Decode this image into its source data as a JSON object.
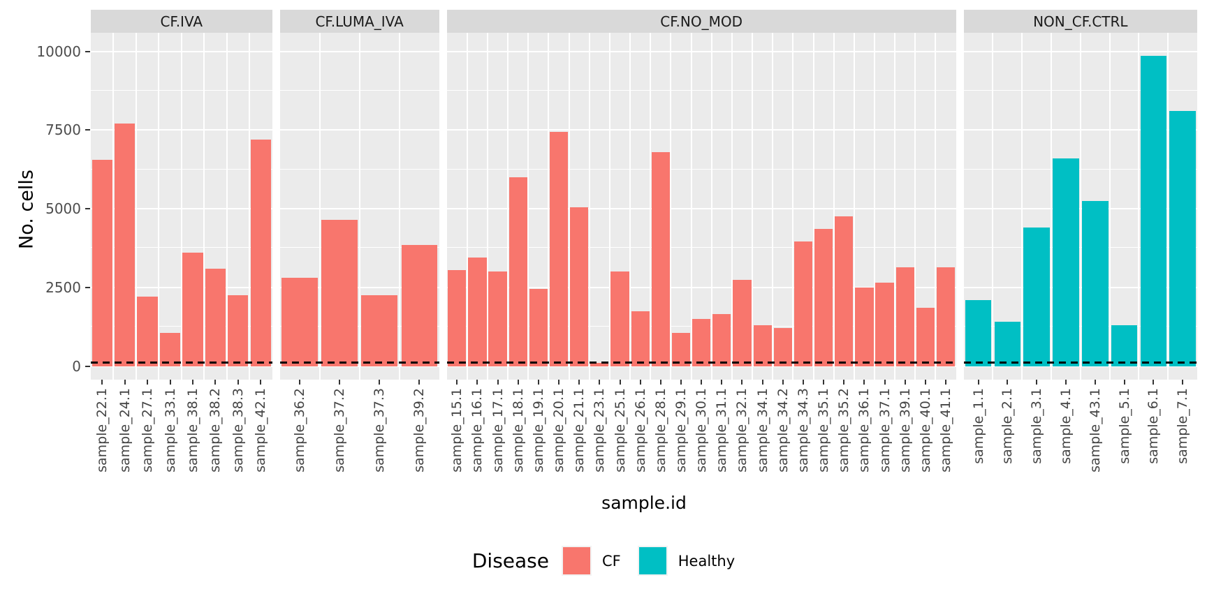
{
  "chart_data": {
    "type": "bar",
    "title": "",
    "xlabel": "sample.id",
    "ylabel": "No. cells",
    "ylim": [
      0,
      10000
    ],
    "yticks": [
      0,
      2500,
      5000,
      7500,
      10000
    ],
    "grid": true,
    "legend_position": "bottom",
    "legend": {
      "title": "Disease",
      "entries": [
        {
          "label": "CF",
          "color": "#F8766D"
        },
        {
          "label": "Healthy",
          "color": "#00BFC4"
        }
      ]
    },
    "threshold_line": {
      "y": 100,
      "style": "dashed",
      "color": "#000000"
    },
    "facets": [
      {
        "label": "CF.IVA",
        "disease": "CF",
        "categories": [
          "sample_22.1",
          "sample_24.1",
          "sample_27.1",
          "sample_33.1",
          "sample_38.1",
          "sample_38.2",
          "sample_38.3",
          "sample_42.1"
        ],
        "values": [
          6550,
          7700,
          2200,
          1050,
          3600,
          3100,
          2250,
          7200
        ]
      },
      {
        "label": "CF.LUMA_IVA",
        "disease": "CF",
        "categories": [
          "sample_36.2",
          "sample_37.2",
          "sample_37.3",
          "sample_39.2"
        ],
        "values": [
          2800,
          4650,
          2250,
          3850
        ]
      },
      {
        "label": "CF.NO_MOD",
        "disease": "CF",
        "categories": [
          "sample_15.1",
          "sample_16.1",
          "sample_17.1",
          "sample_18.1",
          "sample_19.1",
          "sample_20.1",
          "sample_21.1",
          "sample_23.1",
          "sample_25.1",
          "sample_26.1",
          "sample_28.1",
          "sample_29.1",
          "sample_30.1",
          "sample_31.1",
          "sample_32.1",
          "sample_34.1",
          "sample_34.2",
          "sample_34.3",
          "sample_35.1",
          "sample_35.2",
          "sample_36.1",
          "sample_37.1",
          "sample_39.1",
          "sample_40.1",
          "sample_41.1"
        ],
        "values": [
          3050,
          3450,
          3000,
          6000,
          2450,
          7450,
          5050,
          100,
          3000,
          1750,
          6800,
          1050,
          1500,
          1650,
          2750,
          1300,
          1200,
          3950,
          4350,
          4750,
          2500,
          2650,
          3150,
          1850,
          3150
        ]
      },
      {
        "label": "NON_CF.CTRL",
        "disease": "Healthy",
        "categories": [
          "sample_1.1",
          "sample_2.1",
          "sample_3.1",
          "sample_4.1",
          "sample_43.1",
          "sample_5.1",
          "sample_6.1",
          "sample_7.1"
        ],
        "values": [
          2100,
          1400,
          4400,
          6600,
          5250,
          1300,
          9850,
          8100
        ]
      }
    ],
    "colors": {
      "panel_background": "#EBEBEB",
      "strip_background": "#D9D9D9",
      "gridline": "#FFFFFF",
      "axis_text": "#4D4D4D"
    }
  }
}
